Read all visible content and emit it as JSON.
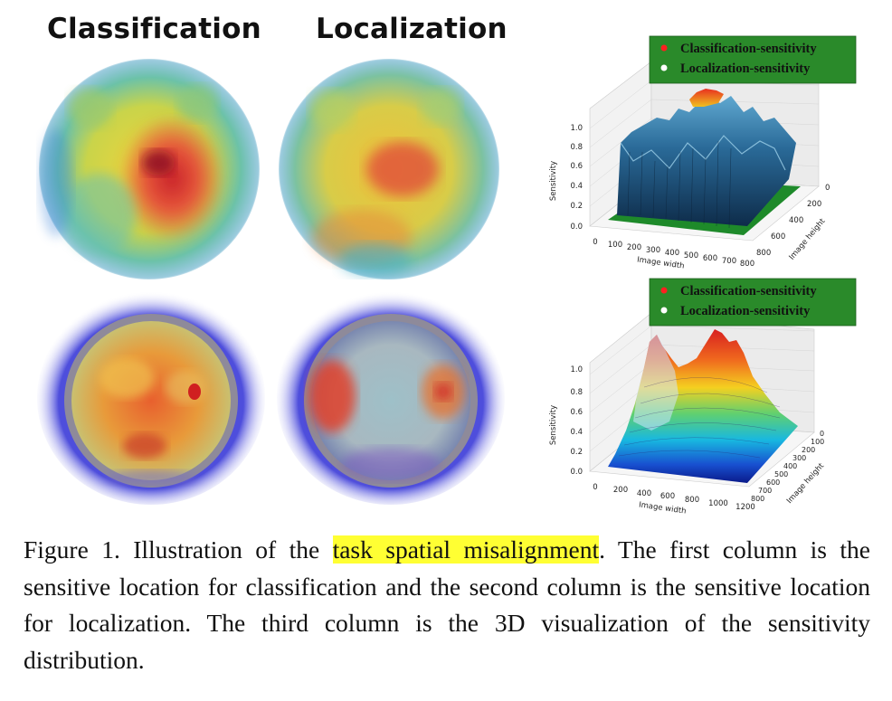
{
  "figure": {
    "column_titles": [
      "Classification",
      "Localization"
    ],
    "legend": {
      "classification": "Classification-sensitivity",
      "localization": "Localization-sensitivity"
    },
    "plot_top": {
      "zlabel": "Sensitivity",
      "xlabel": "Image width",
      "ylabel": "Image height",
      "z_ticks": [
        "0.0",
        "0.2",
        "0.4",
        "0.6",
        "0.8",
        "1.0"
      ],
      "x_ticks": [
        "0",
        "100",
        "200",
        "300",
        "400",
        "500",
        "600",
        "700",
        "800"
      ],
      "y_ticks": [
        "0",
        "200",
        "400",
        "600",
        "800"
      ]
    },
    "plot_bottom": {
      "zlabel": "Sensitivity",
      "xlabel": "Image width",
      "ylabel": "Image height",
      "z_ticks": [
        "0.0",
        "0.2",
        "0.4",
        "0.6",
        "0.8",
        "1.0"
      ],
      "x_ticks": [
        "0",
        "200",
        "400",
        "600",
        "800",
        "1000",
        "1200"
      ],
      "y_ticks": [
        "0",
        "100",
        "200",
        "300",
        "400",
        "500",
        "600",
        "700",
        "800"
      ]
    },
    "colors": {
      "legend_bg": "#2a8a2a",
      "highlight": "#ffff33",
      "classification_dot": "#ff2020",
      "localization_dot": "#ffffff"
    }
  },
  "caption": {
    "prefix": "Figure 1. Illustration of the ",
    "highlight": "task spatial misalignment",
    "suffix": ".  The first column is the sensitive location for classification and the second column is the sensitive location for localization. The third column is the 3D visualization of the sensitivity distribution."
  }
}
